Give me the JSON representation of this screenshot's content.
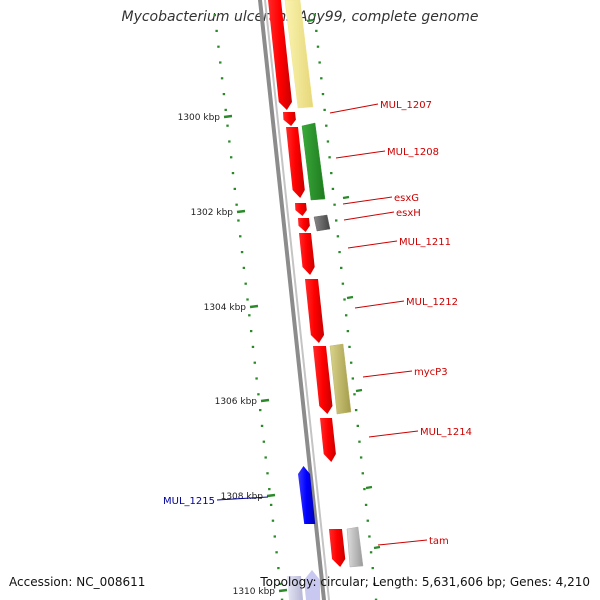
{
  "title": "Mycobacterium ulcerans Agy99, complete genome",
  "footer": {
    "accession": "Accession: NC_008611",
    "summary": "Topology: circular; Length: 5,631,606 bp; Genes: 4,210"
  },
  "colors": {
    "backbone": "#8c8c8c",
    "tick": "#2a8a2a",
    "label_forward": "#cc0000",
    "label_reverse": "#000099"
  },
  "ticks": [
    {
      "label": "1300 kbp"
    },
    {
      "label": "1302 kbp"
    },
    {
      "label": "1304 kbp"
    },
    {
      "label": "1306 kbp"
    },
    {
      "label": "1308 kbp"
    },
    {
      "label": "1310 kbp"
    }
  ],
  "genes": [
    {
      "name": "MUL_1207",
      "color": "#ff1a1a"
    },
    {
      "name": "MUL_1208",
      "color": "#ff1a1a"
    },
    {
      "name": "esxG",
      "color": "#ff1a1a"
    },
    {
      "name": "esxH",
      "color": "#ff1a1a"
    },
    {
      "name": "MUL_1211",
      "color": "#ff1a1a"
    },
    {
      "name": "MUL_1212",
      "color": "#ff1a1a"
    },
    {
      "name": "mycP3",
      "color": "#ff1a1a"
    },
    {
      "name": "MUL_1214",
      "color": "#ff1a1a"
    },
    {
      "name": "MUL_1215",
      "color": "#1a1aff"
    },
    {
      "name": "tam",
      "color": "#ff1a1a"
    }
  ],
  "features": [
    {
      "color": "#f0e68c"
    },
    {
      "color": "#2e9a2e"
    },
    {
      "color": "#666666"
    },
    {
      "color": "#bdb76b"
    },
    {
      "color": "#b0b0b0"
    }
  ]
}
